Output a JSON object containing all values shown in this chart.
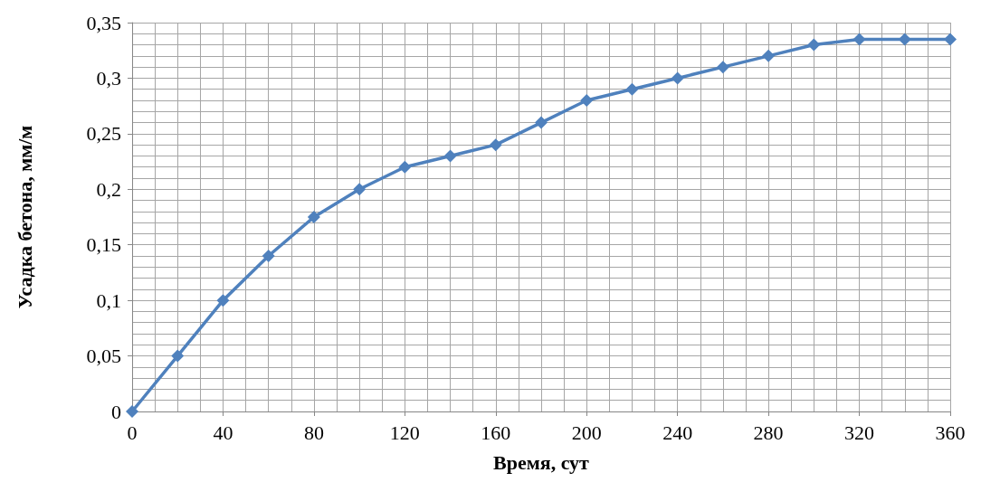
{
  "chart_data": {
    "type": "line",
    "xlabel": "Время, сут",
    "ylabel": "Усадка бетона, мм/м",
    "x": [
      0,
      20,
      40,
      60,
      80,
      100,
      120,
      140,
      160,
      180,
      200,
      220,
      240,
      260,
      280,
      300,
      320,
      340,
      360
    ],
    "series": [
      {
        "color": "#4f81bd",
        "values": [
          0,
          0.05,
          0.1,
          0.14,
          0.175,
          0.2,
          0.22,
          0.23,
          0.24,
          0.26,
          0.28,
          0.29,
          0.3,
          0.31,
          0.32,
          0.33,
          0.335,
          0.335,
          0.335
        ]
      }
    ],
    "xlim": [
      0,
      360
    ],
    "xticks": [
      0,
      40,
      80,
      120,
      160,
      200,
      240,
      280,
      320,
      360
    ],
    "ylim": [
      0,
      0.35
    ],
    "yticks": [
      0,
      {
        "value": 0.05,
        "label": "0,05"
      },
      {
        "value": 0.1,
        "label": "0,1"
      },
      {
        "value": 0.15,
        "label": "0,15"
      },
      {
        "value": 0.2,
        "label": "0,2"
      },
      {
        "value": 0.25,
        "label": "0,25"
      },
      {
        "value": 0.3,
        "label": "0,3"
      },
      {
        "value": 0.35,
        "label": "0,35"
      }
    ],
    "grid": true,
    "marker": "diamond",
    "line_style": "solid"
  }
}
